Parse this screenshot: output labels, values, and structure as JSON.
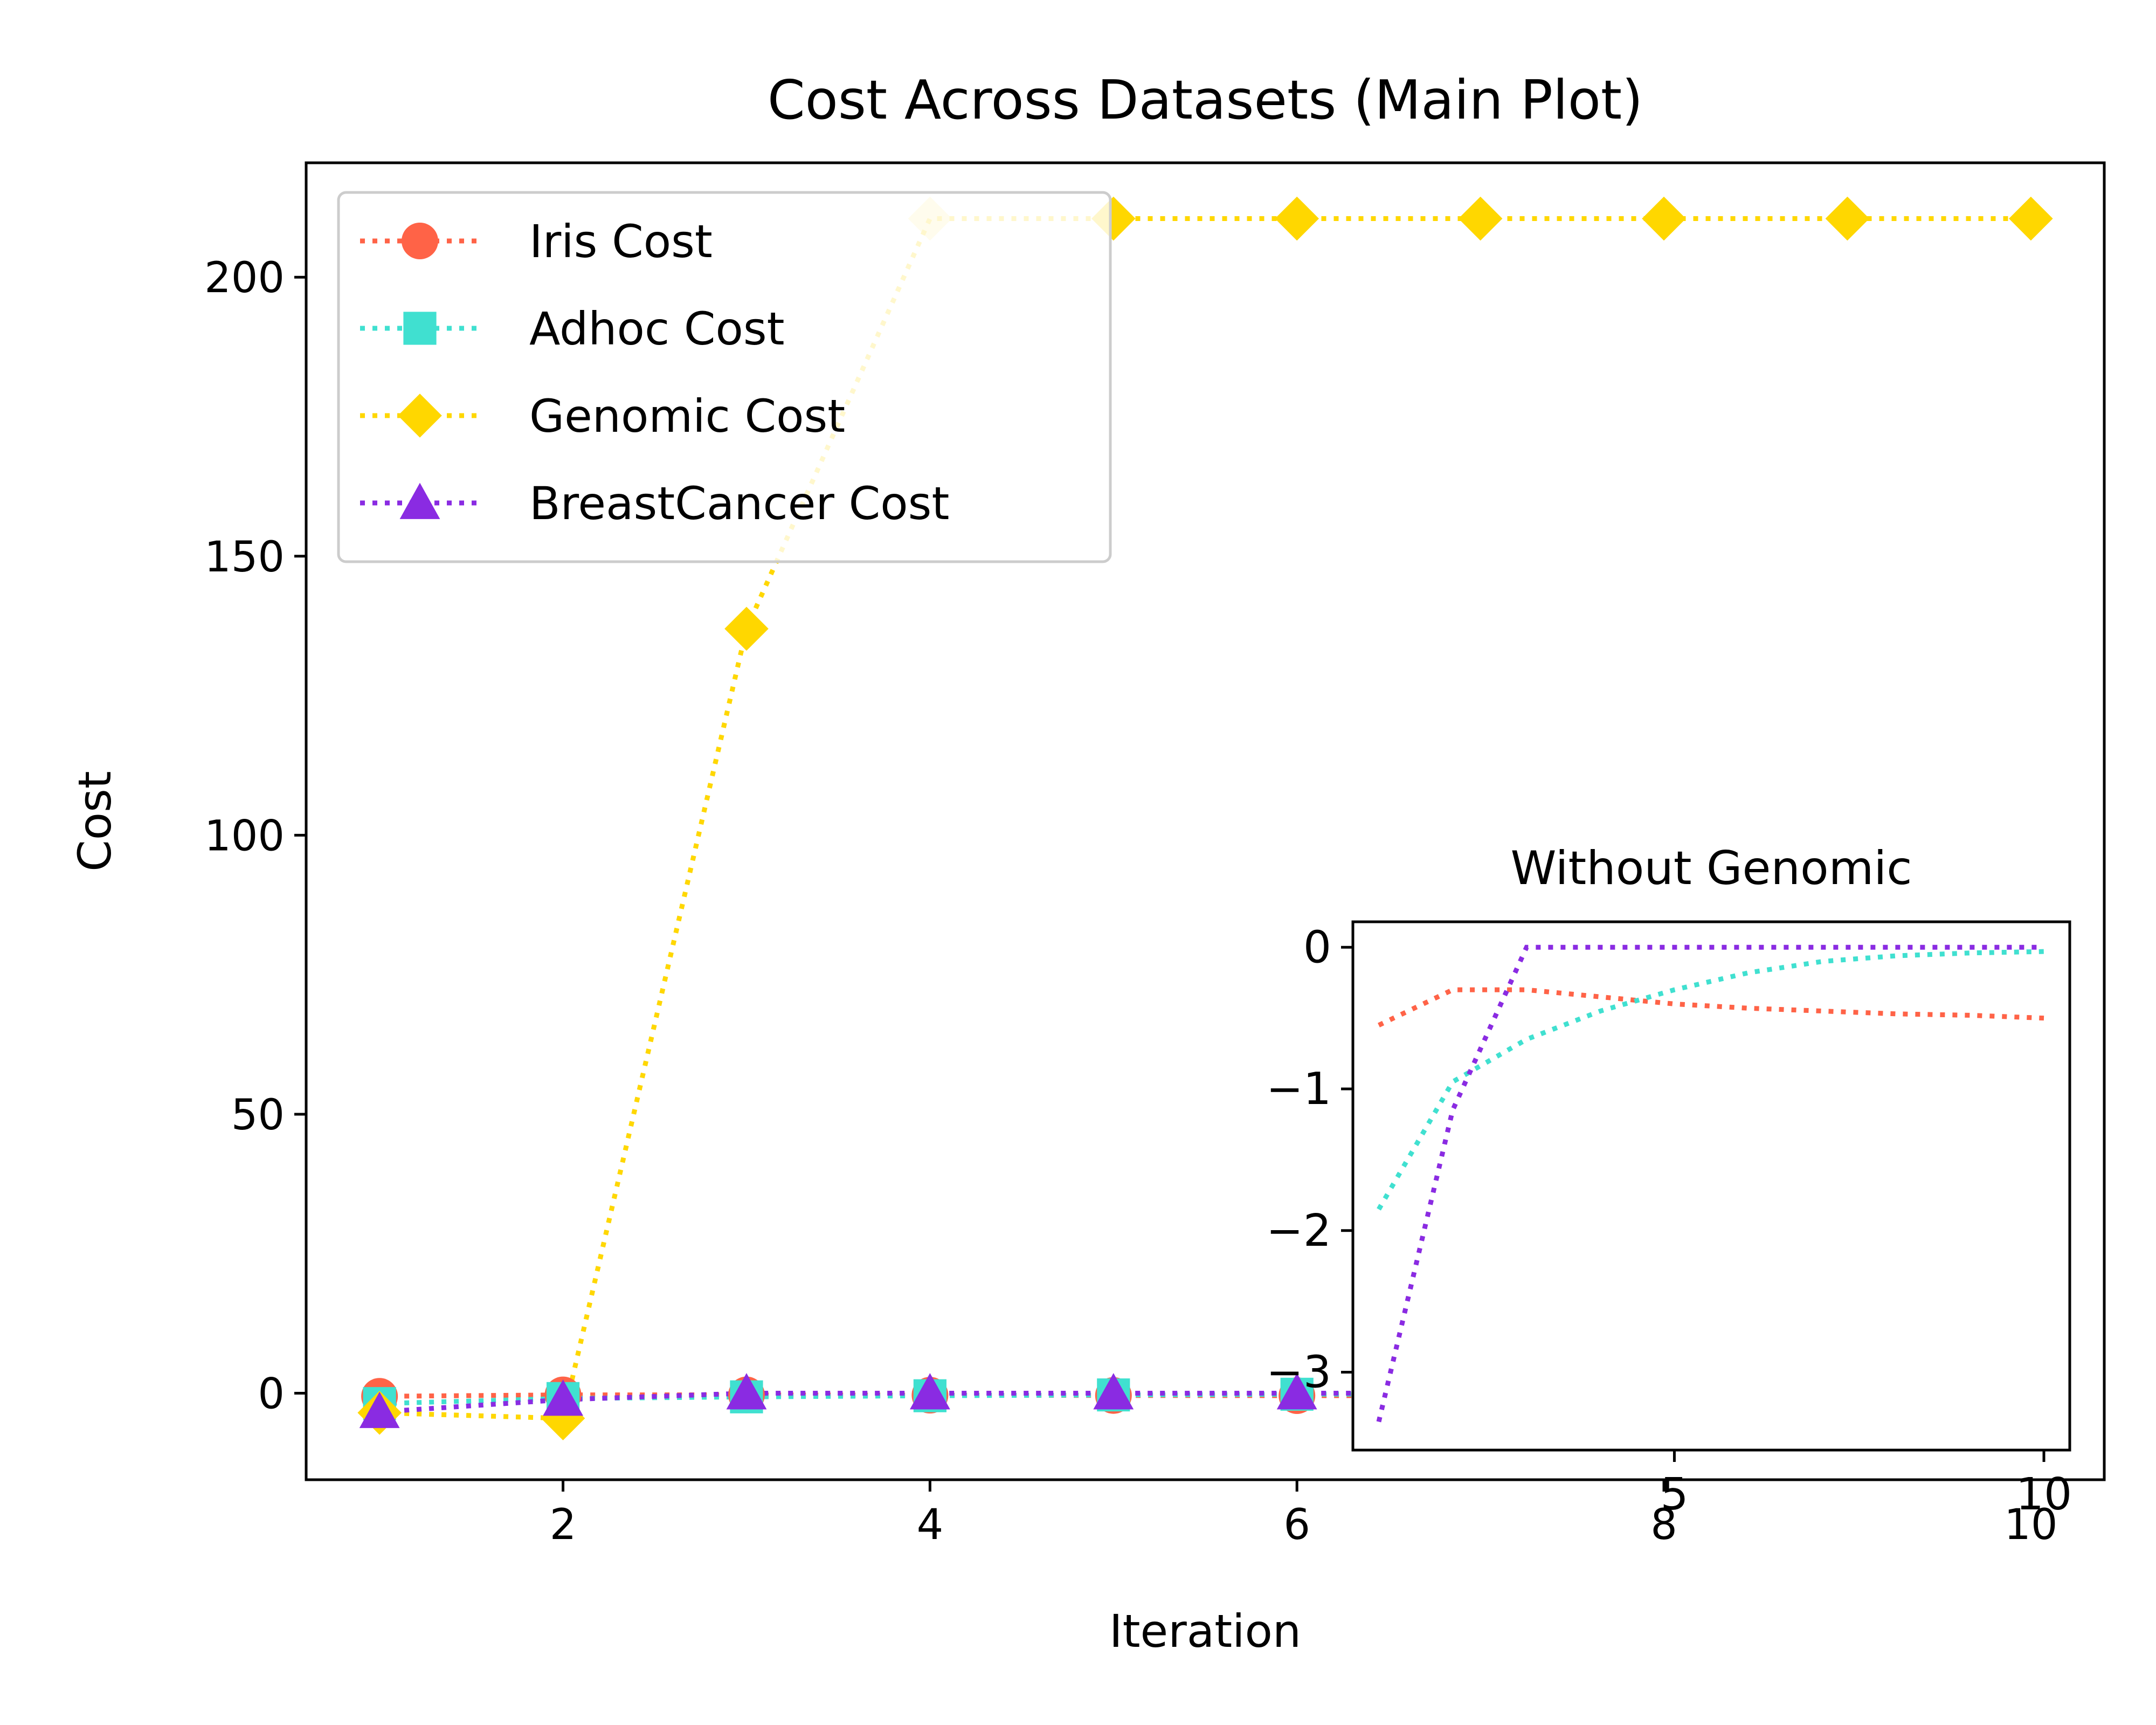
{
  "chart_data": [
    {
      "type": "line",
      "title": "Cost Across Datasets (Main Plot)",
      "xlabel": "Iteration",
      "ylabel": "Cost",
      "xlim": [
        0.6,
        10.4
      ],
      "ylim": [
        -15.5,
        220.5
      ],
      "xticks": [
        2,
        4,
        6,
        8,
        10
      ],
      "yticks": [
        0,
        50,
        100,
        150,
        200
      ],
      "grid": false,
      "legend_position": "upper-left",
      "x": [
        1,
        2,
        3,
        4,
        5,
        6,
        7,
        8,
        9,
        10
      ],
      "series": [
        {
          "name": "Iris Cost",
          "color": "#ff6347",
          "marker": "circle",
          "linestyle": "dotted",
          "values": [
            -0.55,
            -0.3,
            -0.3,
            -0.35,
            -0.4,
            -0.43,
            -0.45,
            -0.47,
            -0.48,
            -0.5
          ]
        },
        {
          "name": "Adhoc Cost",
          "color": "#40e0d0",
          "marker": "square",
          "linestyle": "dotted",
          "values": [
            -1.85,
            -0.95,
            -0.65,
            -0.45,
            -0.3,
            -0.18,
            -0.1,
            -0.06,
            -0.04,
            -0.03
          ]
        },
        {
          "name": "Genomic Cost",
          "color": "#ffd700",
          "marker": "diamond",
          "linestyle": "dotted",
          "values": [
            -3.5,
            -4.5,
            137,
            210.5,
            210.5,
            210.5,
            210.5,
            210.5,
            210.5,
            210.5
          ]
        },
        {
          "name": "BreastCancer Cost",
          "color": "#8a2be2",
          "marker": "triangle",
          "linestyle": "dotted",
          "values": [
            -3.35,
            -1.15,
            0,
            0,
            0,
            0,
            0,
            0,
            0,
            0
          ]
        }
      ]
    },
    {
      "type": "line",
      "title": "Without Genomic",
      "xlim": [
        0.65,
        10.35
      ],
      "ylim": [
        -3.55,
        0.18
      ],
      "xticks": [
        5,
        10
      ],
      "yticks": [
        0,
        -1,
        -2,
        -3
      ],
      "ytick_labels": [
        "0",
        "−1",
        "−2",
        "−3"
      ],
      "grid": false,
      "x": [
        1,
        2,
        3,
        4,
        5,
        6,
        7,
        8,
        9,
        10
      ],
      "series": [
        {
          "color": "#ff6347",
          "linestyle": "dotted",
          "values": [
            -0.55,
            -0.3,
            -0.3,
            -0.35,
            -0.4,
            -0.43,
            -0.45,
            -0.47,
            -0.48,
            -0.5
          ]
        },
        {
          "color": "#40e0d0",
          "linestyle": "dotted",
          "values": [
            -1.85,
            -0.95,
            -0.65,
            -0.45,
            -0.3,
            -0.18,
            -0.1,
            -0.06,
            -0.04,
            -0.03
          ]
        },
        {
          "color": "#8a2be2",
          "linestyle": "dotted",
          "values": [
            -3.35,
            -1.15,
            0,
            0,
            0,
            0,
            0,
            0,
            0,
            0
          ]
        }
      ]
    }
  ]
}
